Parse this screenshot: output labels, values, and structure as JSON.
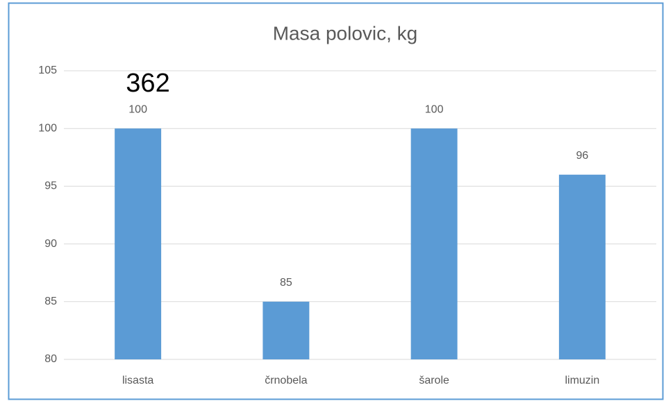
{
  "chart_data": {
    "type": "bar",
    "title": "Masa polovic, kg",
    "annotation": "362",
    "categories": [
      "lisasta",
      "črnobela",
      "šarole",
      "limuzin"
    ],
    "values": [
      100,
      85,
      100,
      96
    ],
    "color": "#5b9bd5",
    "ylim": [
      80,
      105
    ],
    "yticks": [
      80,
      85,
      90,
      95,
      100,
      105
    ],
    "grid": true
  }
}
